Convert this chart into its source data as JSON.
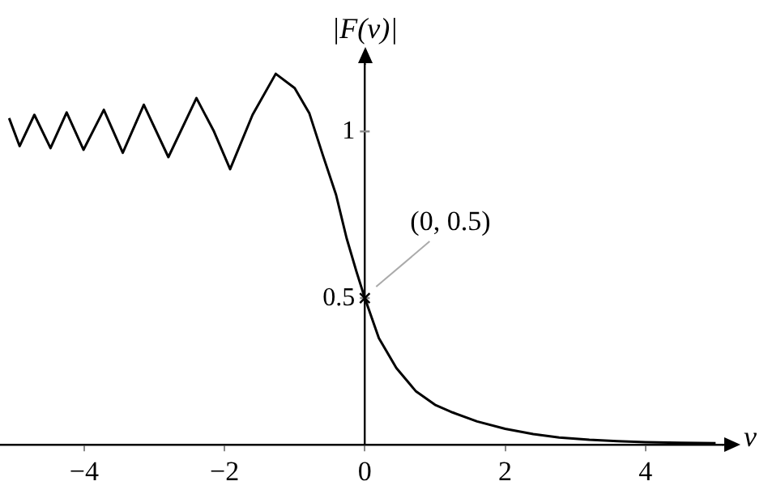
{
  "chart_data": {
    "type": "line",
    "xlabel": "ν",
    "ylabel": "|F(ν)|",
    "x": [
      -5.07,
      -4.92,
      -4.71,
      -4.48,
      -4.25,
      -4.01,
      -3.72,
      -3.45,
      -3.15,
      -2.8,
      -2.4,
      -2.15,
      -1.92,
      -1.6,
      -1.27,
      -1.0,
      -0.79,
      -0.6,
      -0.41,
      -0.26,
      -0.12,
      0,
      0.2,
      0.45,
      0.73,
      1.0,
      1.25,
      1.6,
      2.0,
      2.4,
      2.77,
      3.2,
      3.6,
      4.0,
      4.5,
      5.0
    ],
    "series": [
      {
        "color": "#000000",
        "values": [
          1.04,
          0.956,
          1.05,
          0.95,
          1.057,
          0.945,
          1.065,
          0.936,
          1.08,
          0.923,
          1.1,
          1.0,
          0.887,
          1.05,
          1.173,
          1.13,
          1.054,
          0.93,
          0.81,
          0.68,
          0.58,
          0.5,
          0.38,
          0.29,
          0.22,
          0.18,
          0.157,
          0.13,
          0.108,
          0.092,
          0.082,
          0.075,
          0.071,
          0.068,
          0.066,
          0.065
        ]
      }
    ],
    "xlim": [
      -5.2,
      5.1
    ],
    "ylim": [
      0.06,
      1.2
    ],
    "xticks": [
      -4,
      -2,
      0,
      2,
      4
    ],
    "yticks": [
      0.5,
      1
    ],
    "grid": false,
    "legend": false,
    "marker": "none",
    "line_style": "solid",
    "annotations": [
      {
        "text": "(0, 0.5)",
        "x": 0,
        "y": 0.5
      }
    ]
  }
}
